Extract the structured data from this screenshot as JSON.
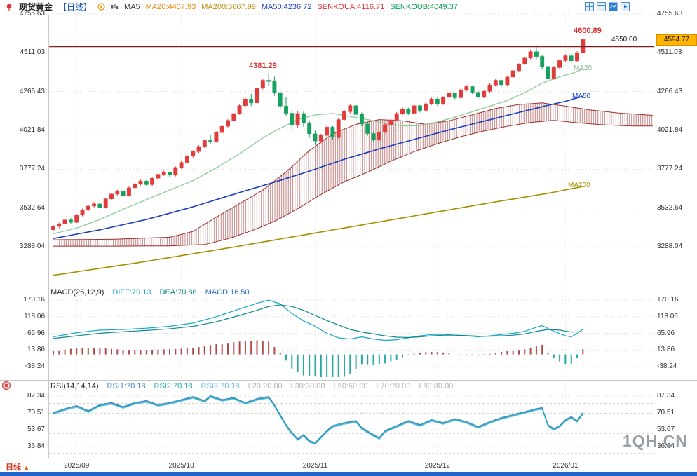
{
  "header": {
    "symbol": "现货黄金",
    "period_tag": "【日线】",
    "ma5": "MA5",
    "ma20": "MA20:4407.93",
    "ma200": "MA200:3667.99",
    "ma50": "MA50:4236.72",
    "senkoua": "SENKOUA:4116.71",
    "senkoub": "SENKOUB:4049.37"
  },
  "macd_header": {
    "title": "MACD(26,12,9)",
    "diff": "DIFF:79.13",
    "dea": "DEA:70.88",
    "macd": "MACD:16.50"
  },
  "rsi_header": {
    "title": "RSI(14,14,14)",
    "rsi1": "RSI1:70.18",
    "rsi2": "RSI2:70.18",
    "rsi3": "RSI3:70.18",
    "l20": "L20:20.00",
    "l30": "L30:30.00",
    "l50": "L50:50.00",
    "l70": "L70:70.00",
    "l80": "L80:80.00"
  },
  "annotations": {
    "peak": "4381.29",
    "high": "4600.89",
    "alert_line": "4550.00",
    "last_price": "4594.77",
    "ma20_tag": "MA20",
    "ma50_tag": "MA50",
    "ma200_tag": "MA200"
  },
  "bottom": {
    "period_label": "日线",
    "arrow": "▲"
  },
  "watermark": "1QH.CN",
  "colors": {
    "up": "#e23b3b",
    "down": "#18a05e",
    "ma20": "#8fce9f",
    "ma50": "#1b3fc0",
    "ma200": "#a68f00",
    "cloud": "#9a2f2f",
    "diff": "#12a8c8",
    "dea": "#0b8890",
    "hist_pos": "#b04848",
    "hist_neg": "#28a8a0",
    "price_line": "#7a2020",
    "tag_bg": "#ffb400",
    "rsi1": "#3f86c8",
    "rsi2": "#18a8b0",
    "rsi3": "#64b8e8"
  },
  "chart_data": {
    "type": "candlestick",
    "title": "现货黄金【日线】",
    "y_axis_labels": [
      "4755.63",
      "4511.03",
      "4266.43",
      "4021.84",
      "3777.24",
      "3532.64",
      "3288.04"
    ],
    "macd_axis_labels": [
      "170.16",
      "118.06",
      "65.96",
      "13.86",
      "-38.24"
    ],
    "rsi_axis_labels": [
      "87.34",
      "70.51",
      "53.67",
      "36.84"
    ],
    "x_ticks": [
      {
        "label": "2025/09",
        "i": 4
      },
      {
        "label": "2025/10",
        "i": 22
      },
      {
        "label": "2025/11",
        "i": 45
      },
      {
        "label": "2025/12",
        "i": 66
      },
      {
        "label": "2026/01",
        "i": 88
      }
    ],
    "alert_price": 4550.0,
    "last_price": 4594.77,
    "peak_price": 4381.29,
    "high_price": 4600.89,
    "candles": [
      [
        3395,
        3425,
        3385,
        3418
      ],
      [
        3418,
        3440,
        3405,
        3432
      ],
      [
        3432,
        3465,
        3425,
        3458
      ],
      [
        3458,
        3470,
        3430,
        3442
      ],
      [
        3442,
        3495,
        3438,
        3488
      ],
      [
        3488,
        3528,
        3480,
        3520
      ],
      [
        3520,
        3552,
        3510,
        3545
      ],
      [
        3545,
        3570,
        3535,
        3558
      ],
      [
        3558,
        3565,
        3522,
        3535
      ],
      [
        3535,
        3598,
        3530,
        3590
      ],
      [
        3590,
        3628,
        3582,
        3620
      ],
      [
        3620,
        3648,
        3610,
        3640
      ],
      [
        3640,
        3652,
        3600,
        3612
      ],
      [
        3612,
        3668,
        3605,
        3660
      ],
      [
        3660,
        3692,
        3650,
        3685
      ],
      [
        3685,
        3712,
        3675,
        3702
      ],
      [
        3702,
        3710,
        3668,
        3680
      ],
      [
        3680,
        3728,
        3672,
        3720
      ],
      [
        3720,
        3752,
        3712,
        3745
      ],
      [
        3745,
        3768,
        3735,
        3758
      ],
      [
        3758,
        3762,
        3725,
        3740
      ],
      [
        3740,
        3795,
        3732,
        3788
      ],
      [
        3788,
        3828,
        3780,
        3820
      ],
      [
        3820,
        3868,
        3812,
        3860
      ],
      [
        3860,
        3895,
        3850,
        3888
      ],
      [
        3888,
        3928,
        3880,
        3920
      ],
      [
        3920,
        3965,
        3912,
        3958
      ],
      [
        3958,
        3995,
        3938,
        3950
      ],
      [
        3950,
        4015,
        3945,
        4008
      ],
      [
        4008,
        4055,
        4000,
        4048
      ],
      [
        4048,
        4092,
        4040,
        4085
      ],
      [
        4085,
        4135,
        4078,
        4128
      ],
      [
        4128,
        4185,
        4120,
        4178
      ],
      [
        4178,
        4228,
        4165,
        4220
      ],
      [
        4220,
        4252,
        4175,
        4195
      ],
      [
        4195,
        4295,
        4190,
        4288
      ],
      [
        4288,
        4345,
        4280,
        4338
      ],
      [
        4338,
        4381.29,
        4300,
        4330
      ],
      [
        4330,
        4360,
        4240,
        4260
      ],
      [
        4260,
        4280,
        4150,
        4175
      ],
      [
        4175,
        4230,
        4110,
        4130
      ],
      [
        4130,
        4150,
        4020,
        4055
      ],
      [
        4055,
        4145,
        4040,
        4128
      ],
      [
        4128,
        4140,
        4045,
        4070
      ],
      [
        4070,
        4085,
        3975,
        4000
      ],
      [
        4000,
        4020,
        3930,
        3955
      ],
      [
        3955,
        4000,
        3940,
        3990
      ],
      [
        3990,
        4052,
        3980,
        4042
      ],
      [
        4042,
        4050,
        3962,
        3978
      ],
      [
        3978,
        4098,
        3970,
        4090
      ],
      [
        4090,
        4150,
        4080,
        4140
      ],
      [
        4140,
        4190,
        4125,
        4178
      ],
      [
        4178,
        4185,
        4105,
        4122
      ],
      [
        4122,
        4135,
        4048,
        4062
      ],
      [
        4062,
        4078,
        3988,
        4002
      ],
      [
        4002,
        4015,
        3948,
        3962
      ],
      [
        3962,
        4018,
        3955,
        4010
      ],
      [
        4010,
        4068,
        4002,
        4058
      ],
      [
        4058,
        4098,
        4048,
        4088
      ],
      [
        4088,
        4138,
        4080,
        4128
      ],
      [
        4128,
        4168,
        4118,
        4158
      ],
      [
        4158,
        4165,
        4118,
        4130
      ],
      [
        4130,
        4188,
        4125,
        4178
      ],
      [
        4178,
        4182,
        4135,
        4148
      ],
      [
        4148,
        4198,
        4140,
        4190
      ],
      [
        4190,
        4228,
        4182,
        4220
      ],
      [
        4220,
        4228,
        4178,
        4190
      ],
      [
        4190,
        4238,
        4182,
        4230
      ],
      [
        4230,
        4268,
        4222,
        4258
      ],
      [
        4258,
        4262,
        4218,
        4228
      ],
      [
        4228,
        4285,
        4222,
        4278
      ],
      [
        4278,
        4308,
        4268,
        4298
      ],
      [
        4298,
        4305,
        4252,
        4262
      ],
      [
        4262,
        4270,
        4222,
        4232
      ],
      [
        4232,
        4278,
        4225,
        4268
      ],
      [
        4268,
        4318,
        4260,
        4308
      ],
      [
        4308,
        4345,
        4298,
        4338
      ],
      [
        4338,
        4342,
        4298,
        4310
      ],
      [
        4310,
        4368,
        4302,
        4358
      ],
      [
        4358,
        4408,
        4350,
        4398
      ],
      [
        4398,
        4445,
        4390,
        4438
      ],
      [
        4438,
        4488,
        4430,
        4478
      ],
      [
        4478,
        4528,
        4470,
        4518
      ],
      [
        4518,
        4552,
        4470,
        4488
      ],
      [
        4488,
        4496,
        4408,
        4425
      ],
      [
        4425,
        4438,
        4332,
        4350
      ],
      [
        4350,
        4428,
        4342,
        4418
      ],
      [
        4418,
        4470,
        4410,
        4462
      ],
      [
        4462,
        4502,
        4450,
        4492
      ],
      [
        4492,
        4508,
        4448,
        4460
      ],
      [
        4460,
        4520,
        4452,
        4512
      ],
      [
        4512,
        4600.89,
        4500,
        4594.77
      ]
    ],
    "ma20_points": [
      [
        0,
        3370
      ],
      [
        4,
        3405
      ],
      [
        8,
        3460
      ],
      [
        12,
        3525
      ],
      [
        16,
        3585
      ],
      [
        20,
        3645
      ],
      [
        24,
        3705
      ],
      [
        28,
        3785
      ],
      [
        32,
        3875
      ],
      [
        36,
        3975
      ],
      [
        39,
        4035
      ],
      [
        42,
        4090
      ],
      [
        45,
        4120
      ],
      [
        48,
        4128
      ],
      [
        51,
        4110
      ],
      [
        54,
        4090
      ],
      [
        57,
        4068
      ],
      [
        60,
        4050
      ],
      [
        63,
        4052
      ],
      [
        66,
        4075
      ],
      [
        69,
        4105
      ],
      [
        72,
        4140
      ],
      [
        75,
        4175
      ],
      [
        78,
        4210
      ],
      [
        81,
        4260
      ],
      [
        84,
        4320
      ],
      [
        87,
        4360
      ],
      [
        89,
        4380
      ],
      [
        91,
        4408
      ]
    ],
    "ma50_points": [
      [
        0,
        3340
      ],
      [
        8,
        3395
      ],
      [
        16,
        3460
      ],
      [
        24,
        3540
      ],
      [
        32,
        3630
      ],
      [
        38,
        3695
      ],
      [
        44,
        3765
      ],
      [
        50,
        3840
      ],
      [
        56,
        3905
      ],
      [
        62,
        3965
      ],
      [
        68,
        4025
      ],
      [
        74,
        4080
      ],
      [
        80,
        4135
      ],
      [
        85,
        4180
      ],
      [
        88,
        4205
      ],
      [
        91,
        4237
      ]
    ],
    "ma200_points": [
      [
        0,
        3108
      ],
      [
        15,
        3190
      ],
      [
        30,
        3280
      ],
      [
        45,
        3375
      ],
      [
        60,
        3470
      ],
      [
        75,
        3565
      ],
      [
        85,
        3625
      ],
      [
        91,
        3668
      ]
    ],
    "cloud_upper_points": [
      [
        0,
        3332
      ],
      [
        10,
        3335
      ],
      [
        20,
        3348
      ],
      [
        24,
        3385
      ],
      [
        28,
        3475
      ],
      [
        32,
        3560
      ],
      [
        36,
        3645
      ],
      [
        40,
        3760
      ],
      [
        44,
        3895
      ],
      [
        48,
        4000
      ],
      [
        52,
        4060
      ],
      [
        56,
        4090
      ],
      [
        60,
        4082
      ],
      [
        64,
        4060
      ],
      [
        68,
        4082
      ],
      [
        72,
        4120
      ],
      [
        76,
        4160
      ],
      [
        80,
        4185
      ],
      [
        84,
        4195
      ],
      [
        88,
        4175
      ],
      [
        92,
        4152
      ],
      [
        97,
        4132
      ],
      [
        103,
        4116.71
      ]
    ],
    "cloud_lower_points": [
      [
        0,
        3292
      ],
      [
        10,
        3292
      ],
      [
        20,
        3294
      ],
      [
        26,
        3302
      ],
      [
        30,
        3338
      ],
      [
        34,
        3388
      ],
      [
        38,
        3448
      ],
      [
        42,
        3528
      ],
      [
        46,
        3618
      ],
      [
        50,
        3698
      ],
      [
        54,
        3758
      ],
      [
        58,
        3828
      ],
      [
        62,
        3888
      ],
      [
        66,
        3938
      ],
      [
        70,
        3982
      ],
      [
        74,
        4018
      ],
      [
        78,
        4048
      ],
      [
        82,
        4072
      ],
      [
        86,
        4085
      ],
      [
        90,
        4070
      ],
      [
        94,
        4058
      ],
      [
        99,
        4050
      ],
      [
        103,
        4049.37
      ]
    ],
    "macd": {
      "diff_points": [
        [
          0,
          55
        ],
        [
          4,
          68
        ],
        [
          8,
          76
        ],
        [
          12,
          78
        ],
        [
          16,
          82
        ],
        [
          20,
          88
        ],
        [
          24,
          98
        ],
        [
          28,
          118
        ],
        [
          32,
          142
        ],
        [
          35,
          160
        ],
        [
          37,
          170
        ],
        [
          39,
          158
        ],
        [
          41,
          128
        ],
        [
          43,
          105
        ],
        [
          45,
          88
        ],
        [
          47,
          66
        ],
        [
          49,
          52
        ],
        [
          51,
          48
        ],
        [
          53,
          55
        ],
        [
          55,
          48
        ],
        [
          57,
          44
        ],
        [
          59,
          46
        ],
        [
          61,
          52
        ],
        [
          63,
          58
        ],
        [
          65,
          62
        ],
        [
          67,
          63
        ],
        [
          69,
          60
        ],
        [
          71,
          58
        ],
        [
          73,
          55
        ],
        [
          75,
          58
        ],
        [
          77,
          62
        ],
        [
          79,
          66
        ],
        [
          81,
          72
        ],
        [
          83,
          85
        ],
        [
          84,
          90
        ],
        [
          86,
          72
        ],
        [
          88,
          58
        ],
        [
          89,
          55
        ],
        [
          90,
          65
        ],
        [
          91,
          79.13
        ]
      ],
      "dea_points": [
        [
          0,
          50
        ],
        [
          4,
          58
        ],
        [
          8,
          66
        ],
        [
          12,
          71
        ],
        [
          16,
          75
        ],
        [
          20,
          80
        ],
        [
          24,
          88
        ],
        [
          28,
          102
        ],
        [
          32,
          122
        ],
        [
          35,
          138
        ],
        [
          37,
          150
        ],
        [
          39,
          155
        ],
        [
          41,
          150
        ],
        [
          43,
          138
        ],
        [
          45,
          122
        ],
        [
          47,
          106
        ],
        [
          49,
          92
        ],
        [
          51,
          78
        ],
        [
          53,
          70
        ],
        [
          55,
          64
        ],
        [
          57,
          58
        ],
        [
          59,
          54
        ],
        [
          61,
          53
        ],
        [
          63,
          55
        ],
        [
          65,
          58
        ],
        [
          67,
          60
        ],
        [
          69,
          60
        ],
        [
          71,
          59
        ],
        [
          73,
          57
        ],
        [
          75,
          57
        ],
        [
          77,
          58
        ],
        [
          79,
          60
        ],
        [
          81,
          64
        ],
        [
          83,
          72
        ],
        [
          85,
          78
        ],
        [
          87,
          76
        ],
        [
          89,
          70
        ],
        [
          91,
          70.88
        ]
      ]
    },
    "rsi": {
      "guide_levels": [
        80,
        70,
        50,
        30
      ],
      "points": [
        [
          0,
          70
        ],
        [
          2,
          74
        ],
        [
          4,
          77
        ],
        [
          6,
          72
        ],
        [
          8,
          78
        ],
        [
          10,
          80
        ],
        [
          12,
          76
        ],
        [
          14,
          80
        ],
        [
          16,
          82
        ],
        [
          18,
          78
        ],
        [
          20,
          80
        ],
        [
          22,
          83
        ],
        [
          24,
          86
        ],
        [
          26,
          82
        ],
        [
          27,
          87
        ],
        [
          29,
          83
        ],
        [
          31,
          85
        ],
        [
          33,
          80
        ],
        [
          35,
          84
        ],
        [
          37,
          86
        ],
        [
          38,
          78
        ],
        [
          39,
          68
        ],
        [
          40,
          58
        ],
        [
          41,
          50
        ],
        [
          42,
          44
        ],
        [
          43,
          48
        ],
        [
          44,
          42
        ],
        [
          45,
          40
        ],
        [
          46,
          46
        ],
        [
          47,
          52
        ],
        [
          48,
          57
        ],
        [
          50,
          60
        ],
        [
          52,
          62
        ],
        [
          53,
          55
        ],
        [
          55,
          48
        ],
        [
          56,
          45
        ],
        [
          57,
          52
        ],
        [
          59,
          57
        ],
        [
          61,
          62
        ],
        [
          63,
          58
        ],
        [
          65,
          63
        ],
        [
          67,
          60
        ],
        [
          69,
          64
        ],
        [
          71,
          61
        ],
        [
          73,
          56
        ],
        [
          75,
          61
        ],
        [
          77,
          65
        ],
        [
          79,
          68
        ],
        [
          81,
          71
        ],
        [
          83,
          74
        ],
        [
          84,
          75
        ],
        [
          85,
          58
        ],
        [
          86,
          54
        ],
        [
          87,
          57
        ],
        [
          88,
          63
        ],
        [
          89,
          66
        ],
        [
          90,
          62
        ],
        [
          91,
          70.18
        ]
      ]
    }
  }
}
